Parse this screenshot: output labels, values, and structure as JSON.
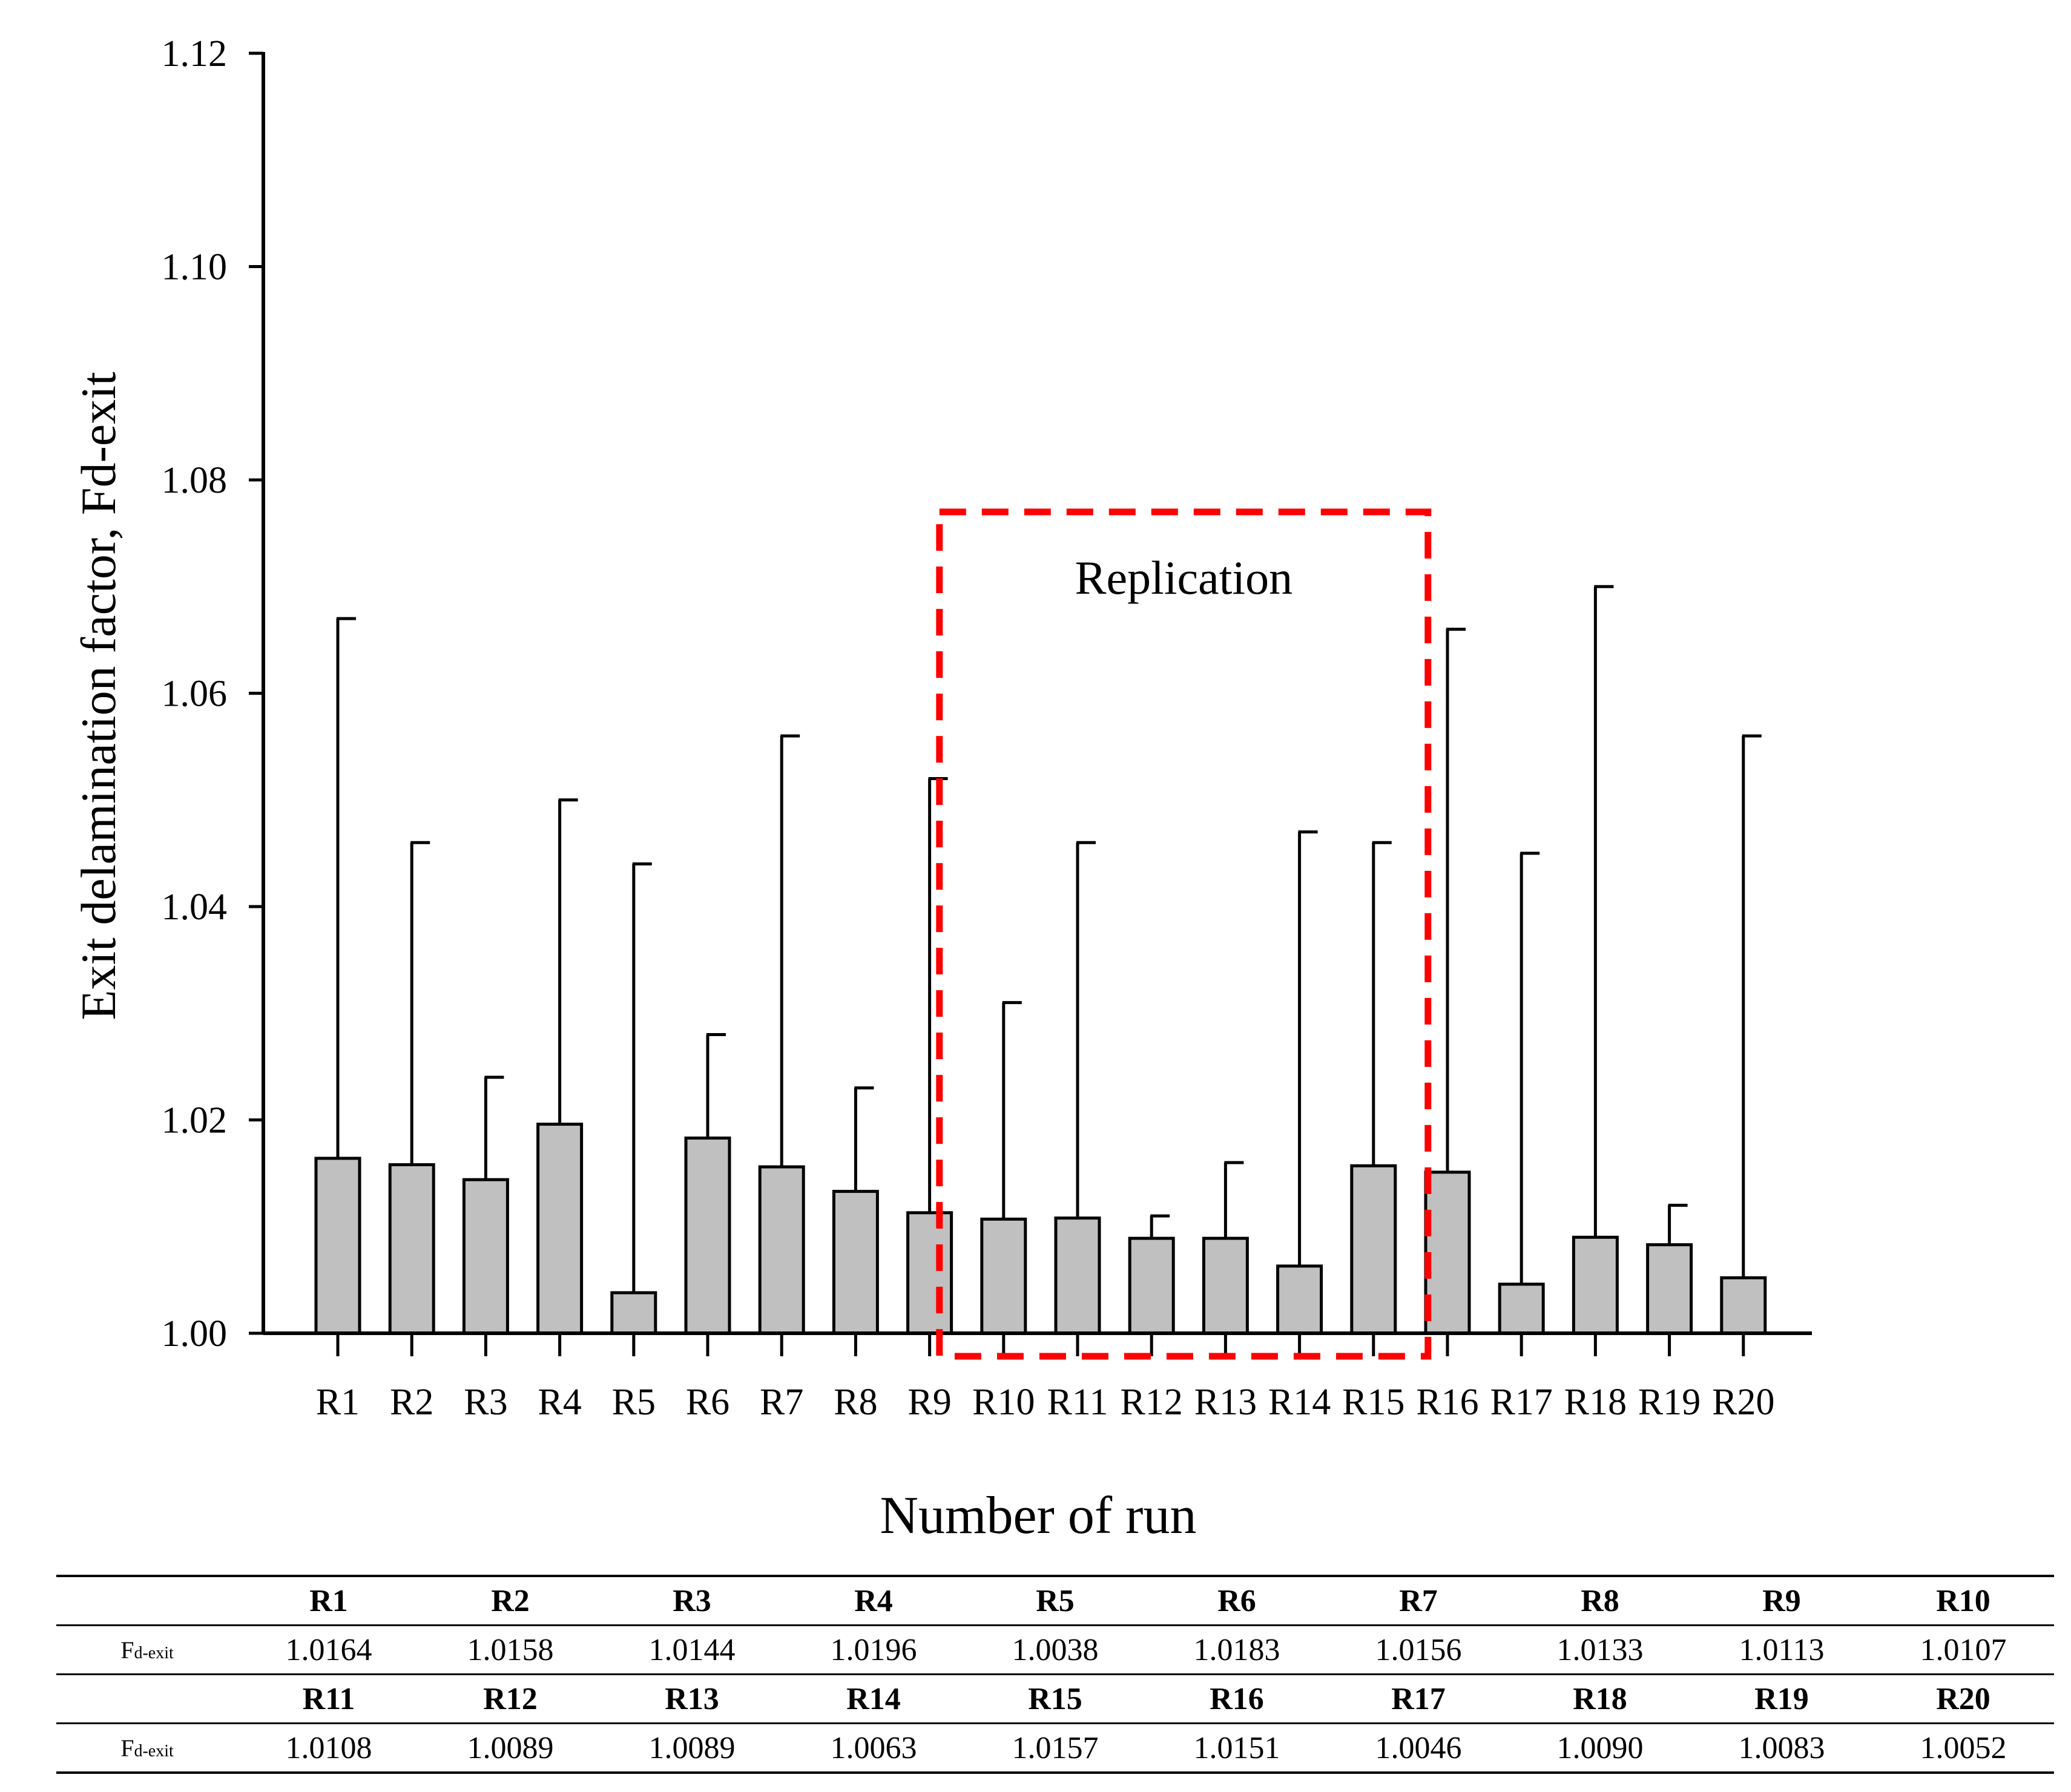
{
  "chart_data": {
    "type": "bar",
    "title": "",
    "xlabel": "Number of run",
    "ylabel": "Exit delamination factor, Fd-exit",
    "ylim": [
      1.0,
      1.12
    ],
    "yticks": [
      "1.00",
      "1.02",
      "1.04",
      "1.06",
      "1.08",
      "1.10",
      "1.12"
    ],
    "categories": [
      "R1",
      "R2",
      "R3",
      "R4",
      "R5",
      "R6",
      "R7",
      "R8",
      "R9",
      "R10",
      "R11",
      "R12",
      "R13",
      "R14",
      "R15",
      "R16",
      "R17",
      "R18",
      "R19",
      "R20"
    ],
    "values": [
      1.0164,
      1.0158,
      1.0144,
      1.0196,
      1.0038,
      1.0183,
      1.0156,
      1.0133,
      1.0113,
      1.0107,
      1.0108,
      1.0089,
      1.0089,
      1.0063,
      1.0157,
      1.0151,
      1.0046,
      1.009,
      1.0083,
      1.0052
    ],
    "error_upper": [
      1.067,
      1.046,
      1.024,
      1.05,
      1.044,
      1.028,
      1.056,
      1.023,
      1.052,
      1.031,
      1.046,
      1.011,
      1.016,
      1.047,
      1.046,
      1.066,
      1.045,
      1.07,
      1.012,
      1.056
    ],
    "annotation": {
      "label": "Replication",
      "from": "R10",
      "to": "R15",
      "color": "#ff0000"
    },
    "bar_color": "#c0c0c0"
  },
  "table": {
    "row_label_main": "F",
    "row_label_sub": "d-exit",
    "rows": [
      {
        "headers": [
          "R1",
          "R2",
          "R3",
          "R4",
          "R5",
          "R6",
          "R7",
          "R8",
          "R9",
          "R10"
        ],
        "values": [
          "1.0164",
          "1.0158",
          "1.0144",
          "1.0196",
          "1.0038",
          "1.0183",
          "1.0156",
          "1.0133",
          "1.0113",
          "1.0107"
        ]
      },
      {
        "headers": [
          "R11",
          "R12",
          "R13",
          "R14",
          "R15",
          "R16",
          "R17",
          "R18",
          "R19",
          "R20"
        ],
        "values": [
          "1.0108",
          "1.0089",
          "1.0089",
          "1.0063",
          "1.0157",
          "1.0151",
          "1.0046",
          "1.0090",
          "1.0083",
          "1.0052"
        ]
      }
    ]
  }
}
